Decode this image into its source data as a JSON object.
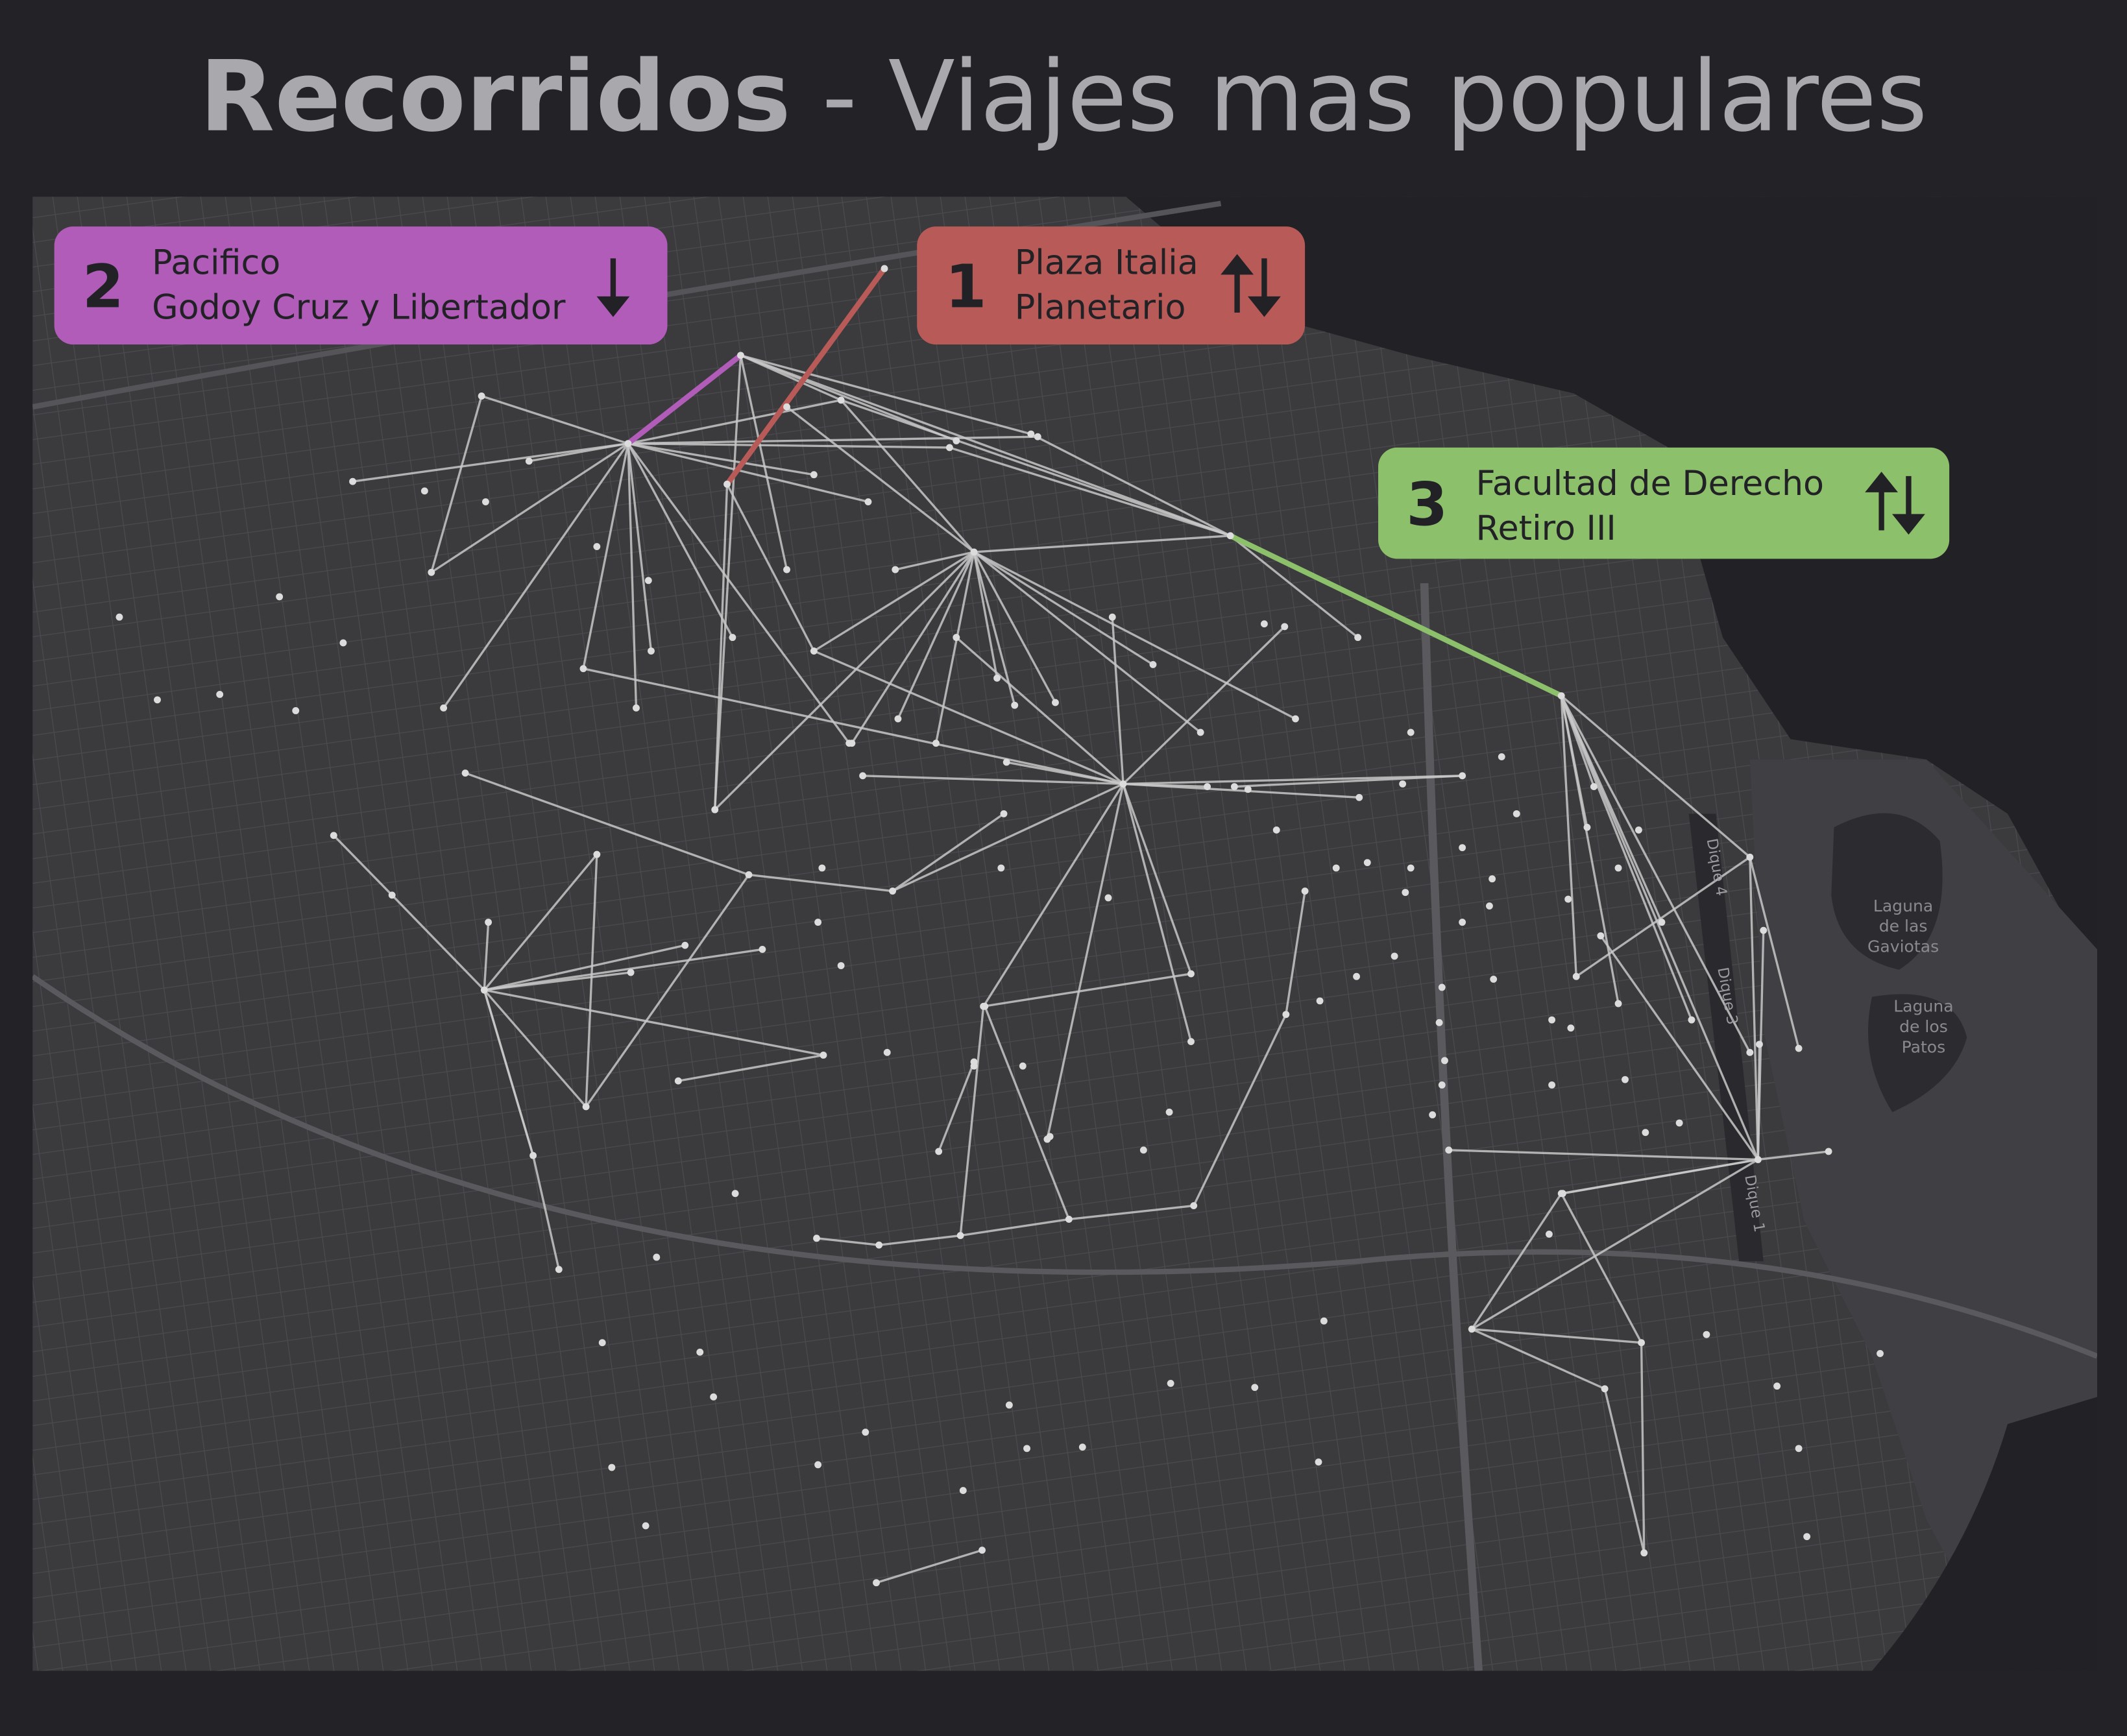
{
  "header": {
    "title_bold": "Recorridos",
    "title_rest": " - Viajes mas populares"
  },
  "routes": [
    {
      "rank": "2",
      "lines": [
        "Pacifico",
        "Godoy Cruz y Libertador"
      ],
      "direction": "down",
      "color": "#b05cb8"
    },
    {
      "rank": "1",
      "lines": [
        "Plaza Italia",
        "Planetario"
      ],
      "direction": "both",
      "color": "#b85a57"
    },
    {
      "rank": "3",
      "lines": [
        "Facultad de Derecho",
        "Retiro  III"
      ],
      "direction": "both",
      "color": "#8cc06a"
    }
  ],
  "map_labels": {
    "lagoons": [
      [
        "Laguna",
        "de las",
        "Gaviotas"
      ],
      [
        "Laguna",
        "de los",
        "Patos"
      ]
    ],
    "docks": [
      "Dique 4",
      "Dique 3",
      "Dique 1"
    ]
  }
}
